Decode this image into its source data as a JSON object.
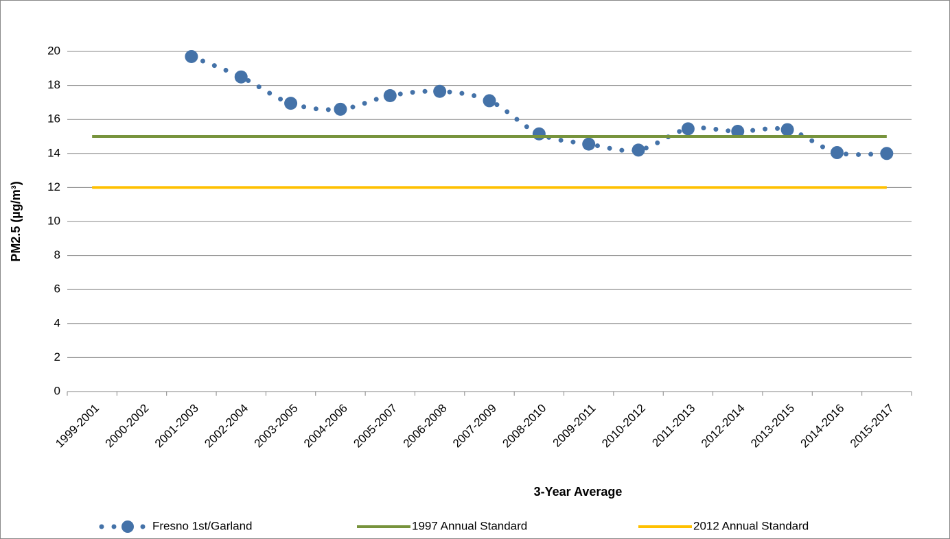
{
  "chart_data": {
    "type": "line",
    "x_label": "3-Year Average",
    "y_label": "PM2.5 (µg/m³)",
    "categories": [
      "1999-2001",
      "2000-2002",
      "2001-2003",
      "2002-2004",
      "2003-2005",
      "2004-2006",
      "2005-2007",
      "2006-2008",
      "2007-2009",
      "2008-2010",
      "2009-2011",
      "2010-2012",
      "2011-2013",
      "2012-2014",
      "2013-2015",
      "2014-2016",
      "2015-2017"
    ],
    "series": [
      {
        "name": "Fresno 1st/Garland",
        "color": "#4472a8",
        "values": [
          null,
          null,
          19.7,
          18.5,
          16.95,
          16.6,
          17.4,
          17.65,
          17.1,
          15.15,
          14.55,
          14.2,
          15.45,
          15.3,
          15.4,
          14.05,
          14.0
        ]
      },
      {
        "name": "1997 Annual Standard",
        "color": "#77933c",
        "values": [
          15,
          15,
          15,
          15,
          15,
          15,
          15,
          15,
          15,
          15,
          15,
          15,
          15,
          15,
          15,
          15,
          15
        ]
      },
      {
        "name": "2012 Annual Standard",
        "color": "#ffc000",
        "values": [
          12,
          12,
          12,
          12,
          12,
          12,
          12,
          12,
          12,
          12,
          12,
          12,
          12,
          12,
          12,
          12,
          12
        ]
      }
    ],
    "ylim": [
      0,
      20
    ],
    "yticks": [
      0,
      2,
      4,
      6,
      8,
      10,
      12,
      14,
      16,
      18,
      20
    ],
    "grid": true,
    "legend": "bottom"
  }
}
